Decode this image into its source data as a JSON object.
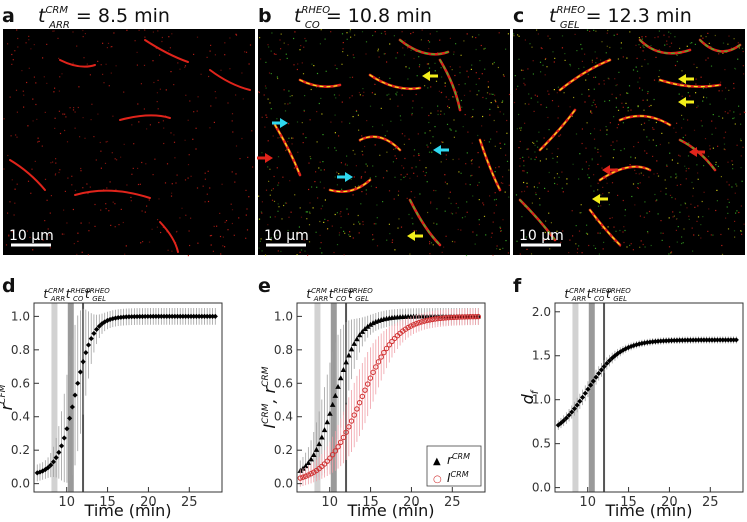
{
  "panels_top": [
    {
      "letter": "a",
      "t_main": "t",
      "t_sup": "CRM",
      "t_sub": "ARR",
      "t_value": "= 8.5 min",
      "scale": "10 µm"
    },
    {
      "letter": "b",
      "t_main": "t",
      "t_sup": "RHEO",
      "t_sub": "CO",
      "t_value": "= 10.8 min",
      "scale": "10 µm"
    },
    {
      "letter": "c",
      "t_main": "t",
      "t_sup": "RHEO",
      "t_sub": "GEL",
      "t_value": "= 12.3 min",
      "scale": "10 µm"
    }
  ],
  "markers": {
    "t_arr": {
      "main": "t",
      "sup": "CRM",
      "sub": "ARR"
    },
    "t_co": {
      "main": "t",
      "sup": "RHEO",
      "sub": "CO"
    },
    "t_gel": {
      "main": "t",
      "sup": "RHEO",
      "sub": "GEL"
    }
  },
  "colors": {
    "red": "#e0241b",
    "green": "#3fbf2a",
    "yellow": "#f3ee1a",
    "cyan": "#2fd8f0",
    "black": "#000000",
    "pink": "#f0a0a8",
    "grey_light": "#d2d2d2",
    "grey_mid": "#9a9a9a",
    "grey_dark": "#555555"
  },
  "chart_data": [
    {
      "type": "scatter",
      "letter": "d",
      "xlabel": "Time (min)",
      "ylabel_main": "r",
      "ylabel_sup": "CFM",
      "xlim": [
        6,
        29
      ],
      "ylim": [
        -0.05,
        1.08
      ],
      "xticks": [
        10,
        15,
        20,
        25
      ],
      "yticks": [
        0.0,
        0.2,
        0.4,
        0.6,
        0.8,
        1.0
      ],
      "ytick_labels": [
        "0.0",
        "0.2",
        "0.4",
        "0.6",
        "0.8",
        "1.0"
      ],
      "shaded_bands": [
        {
          "x": 8.5,
          "shade": "light"
        },
        {
          "x": 10.5,
          "shade": "mid"
        },
        {
          "x": 12.0,
          "shade": "line"
        }
      ],
      "series": [
        {
          "name": "r_CFM",
          "marker": "diamond",
          "color": "#000000",
          "midpoint": 11.0,
          "width": 1.1,
          "y0": 0.05,
          "y1": 1.0,
          "err_peak": 0.42,
          "err_tail": 0.05
        }
      ]
    },
    {
      "type": "scatter",
      "letter": "e",
      "xlabel": "Time (min)",
      "ylabel_main": "I",
      "ylabel_sup1": "CRM",
      "ylabel_mid": ", r",
      "ylabel_sup2": "CRM",
      "xlim": [
        6,
        29
      ],
      "ylim": [
        -0.05,
        1.08
      ],
      "xticks": [
        10,
        15,
        20,
        25
      ],
      "yticks": [
        0.0,
        0.2,
        0.4,
        0.6,
        0.8,
        1.0
      ],
      "ytick_labels": [
        "0.0",
        "0.2",
        "0.4",
        "0.6",
        "0.8",
        "1.0"
      ],
      "shaded_bands": [
        {
          "x": 8.5,
          "shade": "light"
        },
        {
          "x": 10.5,
          "shade": "mid"
        },
        {
          "x": 12.0,
          "shade": "line"
        }
      ],
      "legend": [
        {
          "symbol": "▲",
          "label_main": "r",
          "label_sup": "CRM"
        },
        {
          "symbol": "○",
          "label_main": "I",
          "label_sup": "CRM"
        }
      ],
      "series": [
        {
          "name": "r_CRM",
          "marker": "triangle",
          "color": "#000000",
          "midpoint": 10.6,
          "width": 1.5,
          "y0": 0.02,
          "y1": 1.0,
          "err_peak": 0.32,
          "err_tail": 0.05
        },
        {
          "name": "I_CRM",
          "marker": "circle",
          "color": "#d03030",
          "midpoint": 13.8,
          "width": 2.2,
          "y0": 0.0,
          "y1": 1.0,
          "err_peak": 0.2,
          "err_tail": 0.05
        }
      ]
    },
    {
      "type": "scatter",
      "letter": "f",
      "xlabel": "Time (min)",
      "ylabel_main": "d",
      "ylabel_sub": "f",
      "xlim": [
        6,
        29
      ],
      "ylim": [
        -0.05,
        2.1
      ],
      "xticks": [
        10,
        15,
        20,
        25
      ],
      "yticks": [
        0.0,
        0.5,
        1.0,
        1.5,
        2.0
      ],
      "ytick_labels": [
        "0.0",
        "0.5",
        "1.0",
        "1.5",
        "2.0"
      ],
      "shaded_bands": [
        {
          "x": 8.5,
          "shade": "light"
        },
        {
          "x": 10.5,
          "shade": "mid"
        },
        {
          "x": 12.0,
          "shade": "line"
        }
      ],
      "series": [
        {
          "name": "d_f",
          "marker": "diamond",
          "color": "#000000",
          "midpoint": 10.0,
          "width": 2.0,
          "y0": 0.55,
          "y1": 1.68,
          "err_peak": 0.09,
          "err_tail": 0.04
        }
      ]
    }
  ]
}
